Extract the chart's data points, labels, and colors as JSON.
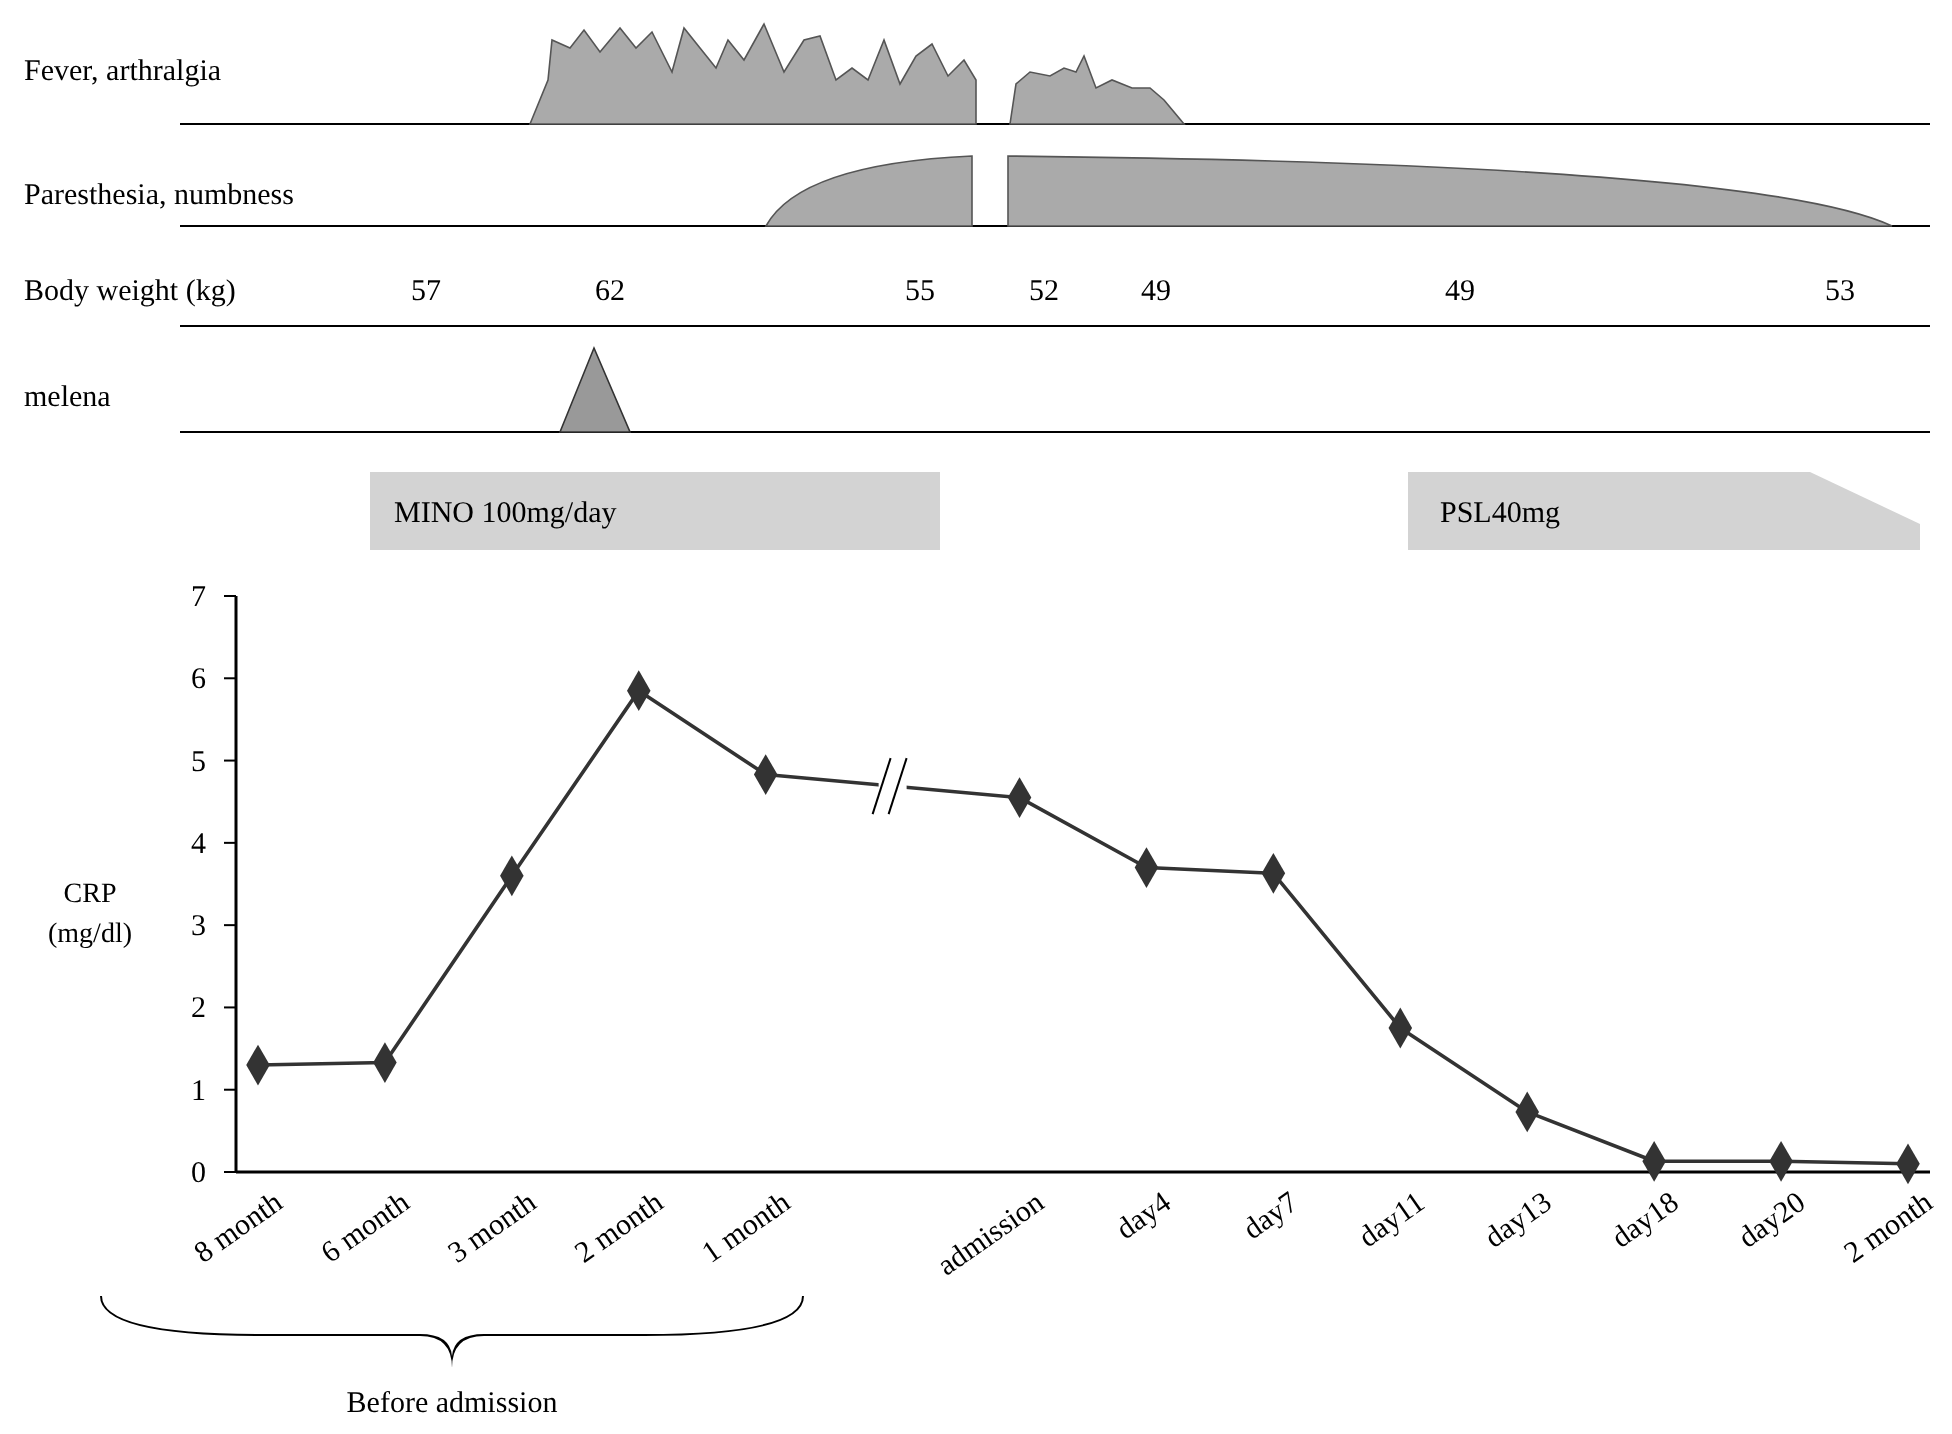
{
  "chart_data": {
    "type": "line",
    "ylabel": "CRP (mg/dl)",
    "categories": [
      "8 month",
      "6 month",
      "3 month",
      "2 month",
      "1 month",
      null,
      "admission",
      "day4",
      "day7",
      "day11",
      "day13",
      "day18",
      "day20",
      "2 month"
    ],
    "series": [
      {
        "color": "#333333",
        "values": [
          1.3,
          1.33,
          3.6,
          5.85,
          4.83,
          null,
          4.55,
          3.7,
          3.63,
          1.75,
          0.73,
          0.13,
          0.13,
          0.1
        ]
      }
    ],
    "ylim": [
      0,
      7
    ],
    "yticks": [
      0,
      1,
      2,
      3,
      4,
      5,
      6,
      7
    ],
    "grid": false,
    "marker": "diamond",
    "line_style": "solid",
    "annotations": [
      "Fever, arthralgia",
      "Paresthesia, numbness",
      "Body weight (kg)",
      "57",
      "62",
      "55",
      "52",
      "49",
      "49",
      "53",
      "melena",
      "MINO 100mg/day",
      "PSL40mg",
      "Before admission"
    ]
  }
}
